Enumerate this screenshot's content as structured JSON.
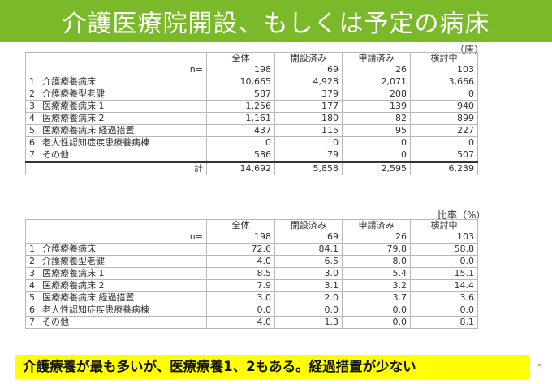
{
  "title": "介護医療院開設、もしくは予定の病床",
  "page_number": "5",
  "note": "介護療養が最も多いが、医療療養1、2もある。経過措置が少ない",
  "table1": {
    "unit": "（床）",
    "headers": [
      "全体",
      "開設済み",
      "申請済み",
      "検討中"
    ],
    "n_label": "n=",
    "n_values": [
      "198",
      "69",
      "26",
      "103"
    ],
    "rows": [
      {
        "no": "1",
        "label": "介護療養病床",
        "values": [
          "10,665",
          "4,928",
          "2,071",
          "3,666"
        ]
      },
      {
        "no": "2",
        "label": "介護療養型老健",
        "values": [
          "587",
          "379",
          "208",
          "0"
        ]
      },
      {
        "no": "3",
        "label": "医療療養病床 1",
        "values": [
          "1,256",
          "177",
          "139",
          "940"
        ]
      },
      {
        "no": "4",
        "label": "医療療養病床 2",
        "values": [
          "1,161",
          "180",
          "82",
          "899"
        ]
      },
      {
        "no": "5",
        "label": "医療療養病床 経過措置",
        "values": [
          "437",
          "115",
          "95",
          "227"
        ]
      },
      {
        "no": "6",
        "label": "老人性認知症疾患療養病棟",
        "values": [
          "0",
          "0",
          "0",
          "0"
        ]
      },
      {
        "no": "7",
        "label": "その他",
        "values": [
          "586",
          "79",
          "0",
          "507"
        ]
      }
    ],
    "total": {
      "label": "計",
      "values": [
        "14,692",
        "5,858",
        "2,595",
        "6,239"
      ]
    }
  },
  "table2": {
    "unit": "比率（%）",
    "headers": [
      "全体",
      "開設済み",
      "申請済み",
      "検討中"
    ],
    "n_label": "n=",
    "n_values": [
      "198",
      "69",
      "26",
      "103"
    ],
    "rows": [
      {
        "no": "1",
        "label": "介護療養病床",
        "values": [
          "72.6",
          "84.1",
          "79.8",
          "58.8"
        ]
      },
      {
        "no": "2",
        "label": "介護療養型老健",
        "values": [
          "4.0",
          "6.5",
          "8.0",
          "0.0"
        ]
      },
      {
        "no": "3",
        "label": "医療療養病床 1",
        "values": [
          "8.5",
          "3.0",
          "5.4",
          "15.1"
        ]
      },
      {
        "no": "4",
        "label": "医療療養病床 2",
        "values": [
          "7.9",
          "3.1",
          "3.2",
          "14.4"
        ]
      },
      {
        "no": "5",
        "label": "医療療養病床 経過措置",
        "values": [
          "3.0",
          "2.0",
          "3.7",
          "3.6"
        ]
      },
      {
        "no": "6",
        "label": "老人性認知症疾患療養病棟",
        "values": [
          "0.0",
          "0.0",
          "0.0",
          "0.0"
        ]
      },
      {
        "no": "7",
        "label": "その他",
        "values": [
          "4.0",
          "1.3",
          "0.0",
          "8.1"
        ]
      }
    ]
  }
}
